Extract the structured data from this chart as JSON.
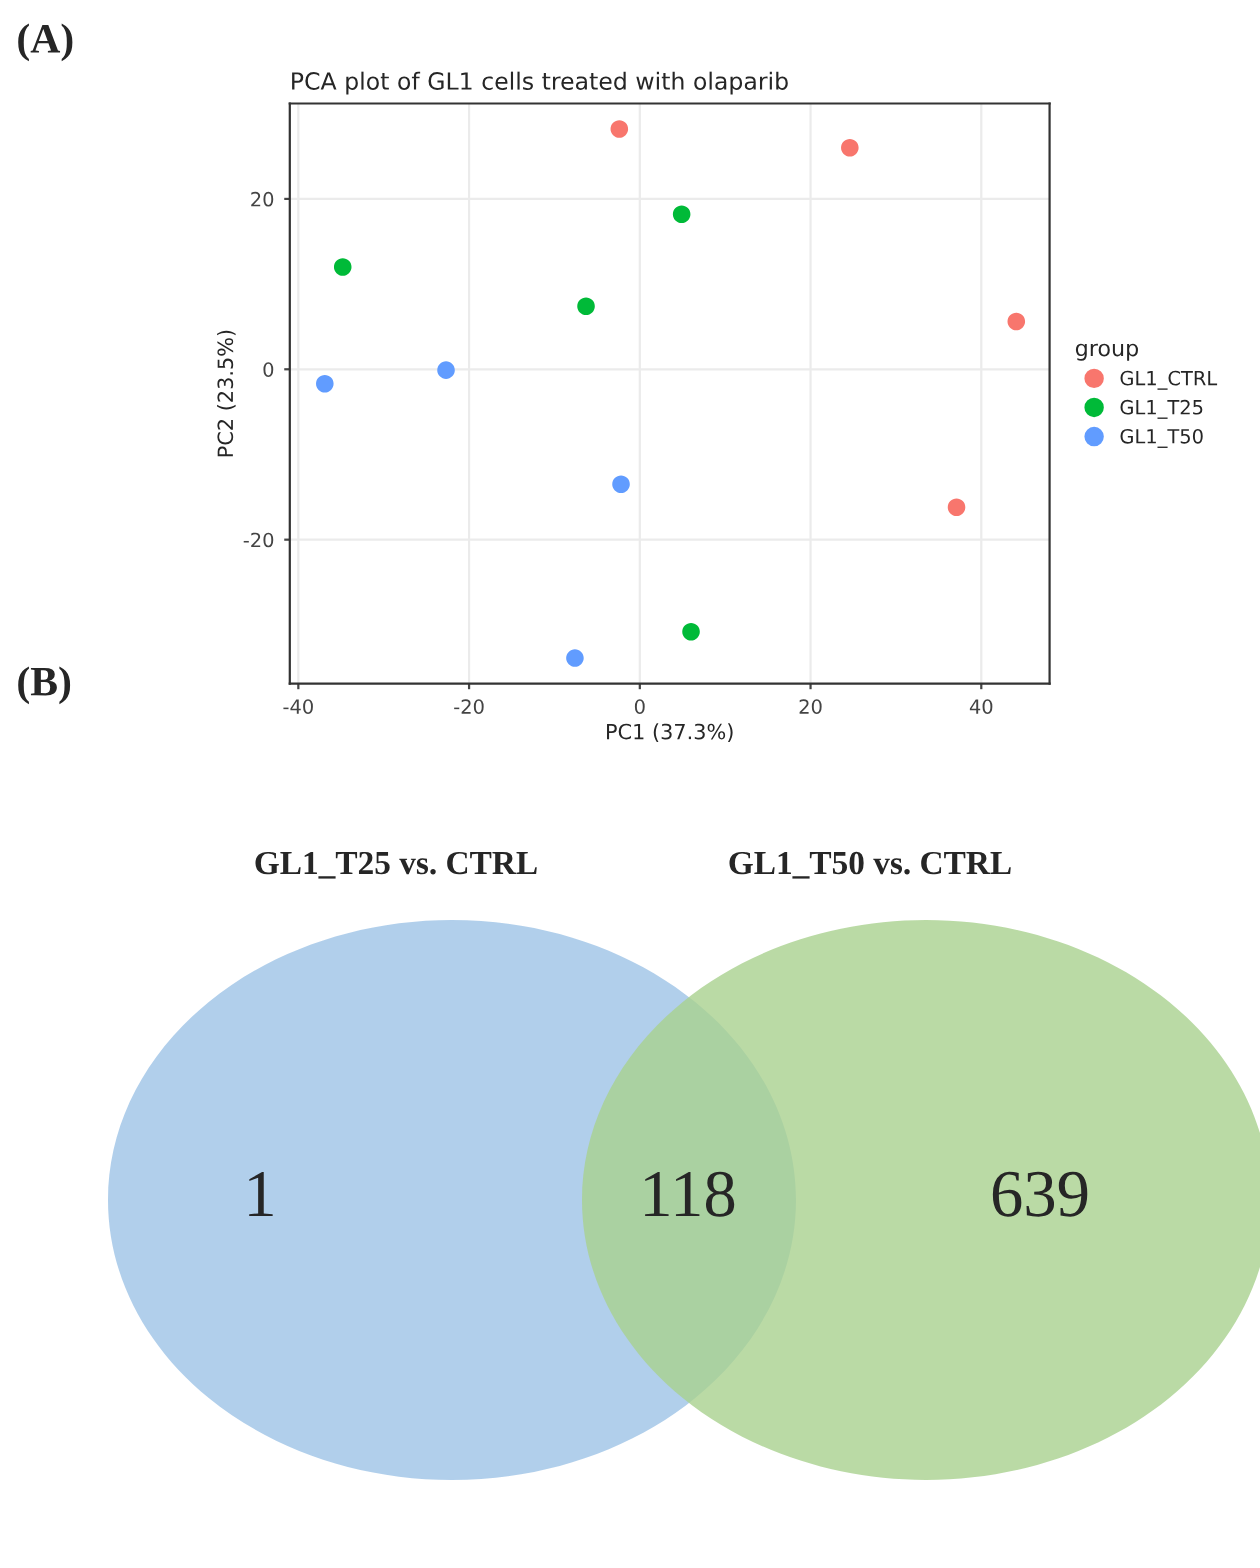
{
  "chart_data": [
    {
      "type": "scatter",
      "title": "PCA plot of GL1 cells treated with olaparib",
      "xlabel": "PC1 (37.3%)",
      "ylabel": "PC2 (23.5%)",
      "legend_title": "group",
      "legend": "right",
      "grid": true,
      "marker": "circle",
      "xlim": [
        -41,
        48
      ],
      "ylim": [
        -36.9,
        31.2
      ],
      "xticks": [
        -40,
        -20,
        0,
        20,
        40
      ],
      "yticks": [
        -20,
        0,
        20
      ],
      "annotations": [
        "(A)"
      ],
      "series": [
        {
          "name": "GL1_CTRL",
          "color": "#f8766d",
          "x": [
            -2.4,
            24.6,
            44.1,
            37.1
          ],
          "values": [
            28.2,
            26.0,
            5.6,
            -16.2
          ]
        },
        {
          "name": "GL1_T25",
          "color": "#00ba38",
          "x": [
            -34.8,
            4.9,
            -6.3,
            6.0
          ],
          "values": [
            12.0,
            18.2,
            7.4,
            -30.8
          ]
        },
        {
          "name": "GL1_T50",
          "color": "#619cff",
          "x": [
            -36.9,
            -22.7,
            -2.2,
            -7.6
          ],
          "values": [
            -1.7,
            -0.1,
            -13.5,
            -33.9
          ]
        }
      ]
    },
    {
      "type": "other",
      "categories": [
        null,
        null,
        null
      ],
      "values": [
        1,
        118,
        639
      ],
      "colors": [
        "#9dc3e6",
        "#8fb89a",
        "#a9d18e"
      ],
      "data_labels": true,
      "annotations": [
        "(B)",
        "GL1_T25 vs. CTRL",
        "GL1_T50 vs. CTRL"
      ]
    }
  ]
}
